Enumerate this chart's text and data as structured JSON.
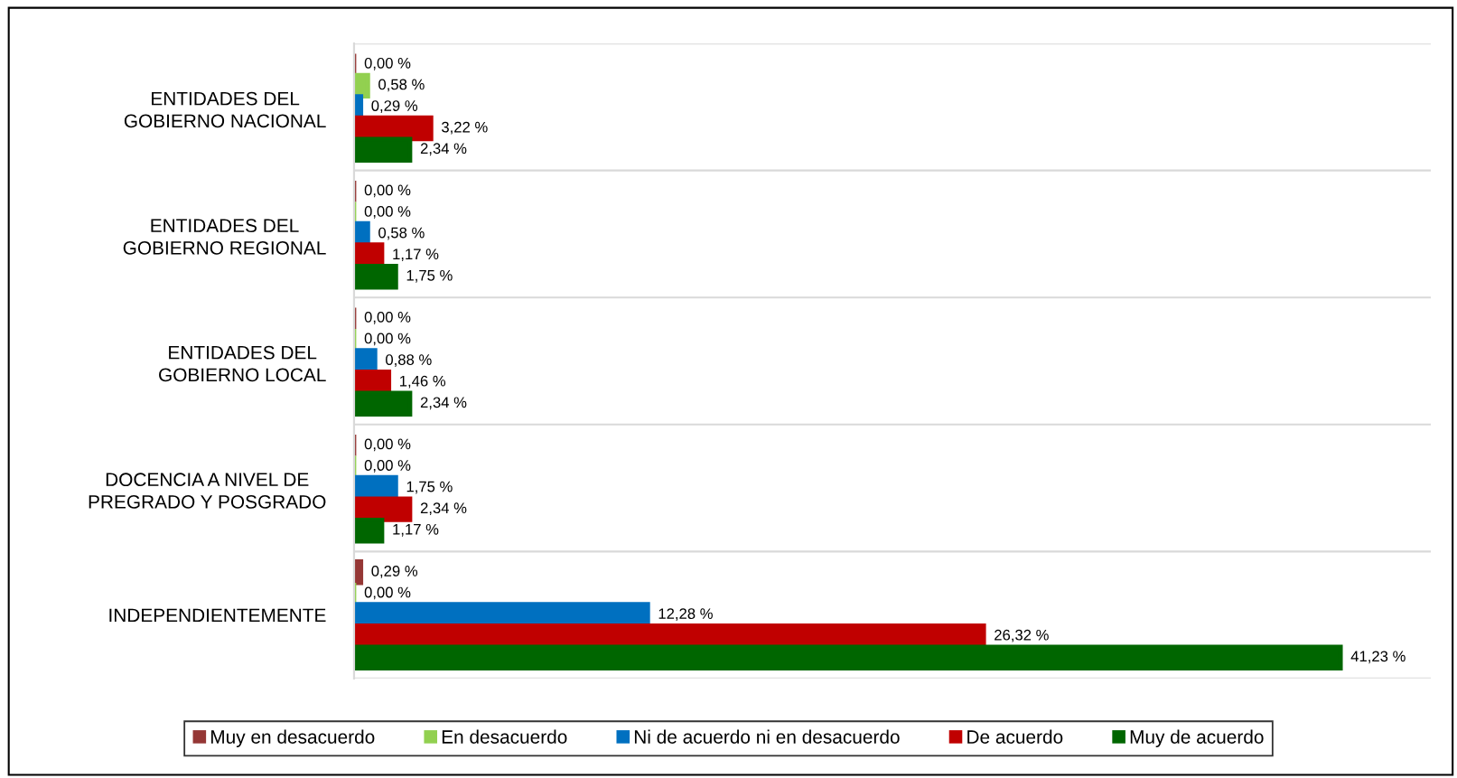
{
  "chart_data": {
    "type": "bar",
    "orientation": "horizontal",
    "categories": [
      "ENTIDADES DEL\nGOBIERNO NACIONAL",
      "ENTIDADES DEL\nGOBIERNO REGIONAL",
      "ENTIDADES DEL\nGOBIERNO LOCAL",
      "DOCENCIA A NIVEL DE\nPREGRADO Y POSGRADO",
      "INDEPENDIENTEMENTE"
    ],
    "series": [
      {
        "name": "Muy en desacuerdo",
        "color": "#953735",
        "values": [
          0.0,
          0.0,
          0.0,
          0.0,
          0.29
        ],
        "value_labels": [
          "0,00 %",
          "0,00 %",
          "0,00 %",
          "0,00 %",
          "0,29 %"
        ]
      },
      {
        "name": "En desacuerdo",
        "color": "#92d050",
        "values": [
          0.58,
          0.0,
          0.0,
          0.0,
          0.0
        ],
        "value_labels": [
          "0,58 %",
          "0,00 %",
          "0,00 %",
          "0,00 %",
          "0,00 %"
        ]
      },
      {
        "name": "Ni de acuerdo ni en desacuerdo",
        "color": "#0070c0",
        "values": [
          0.29,
          0.58,
          0.88,
          1.75,
          12.28
        ],
        "value_labels": [
          "0,29 %",
          "0,58 %",
          "0,88 %",
          "1,75 %",
          "12,28 %"
        ]
      },
      {
        "name": "De acuerdo",
        "color": "#c00000",
        "values": [
          3.22,
          1.17,
          1.46,
          2.34,
          26.32
        ],
        "value_labels": [
          "3,22 %",
          "1,17 %",
          "1,46 %",
          "2,34 %",
          "26,32 %"
        ]
      },
      {
        "name": "Muy de acuerdo",
        "color": "#006600",
        "values": [
          2.34,
          1.75,
          2.34,
          1.17,
          41.23
        ],
        "value_labels": [
          "2,34 %",
          "1,75 %",
          "2,34 %",
          "1,17 %",
          "41,23 %"
        ]
      }
    ],
    "xlim": [
      0,
      45
    ],
    "tick_labels": "y",
    "grid": "y",
    "legend": "bottom"
  }
}
